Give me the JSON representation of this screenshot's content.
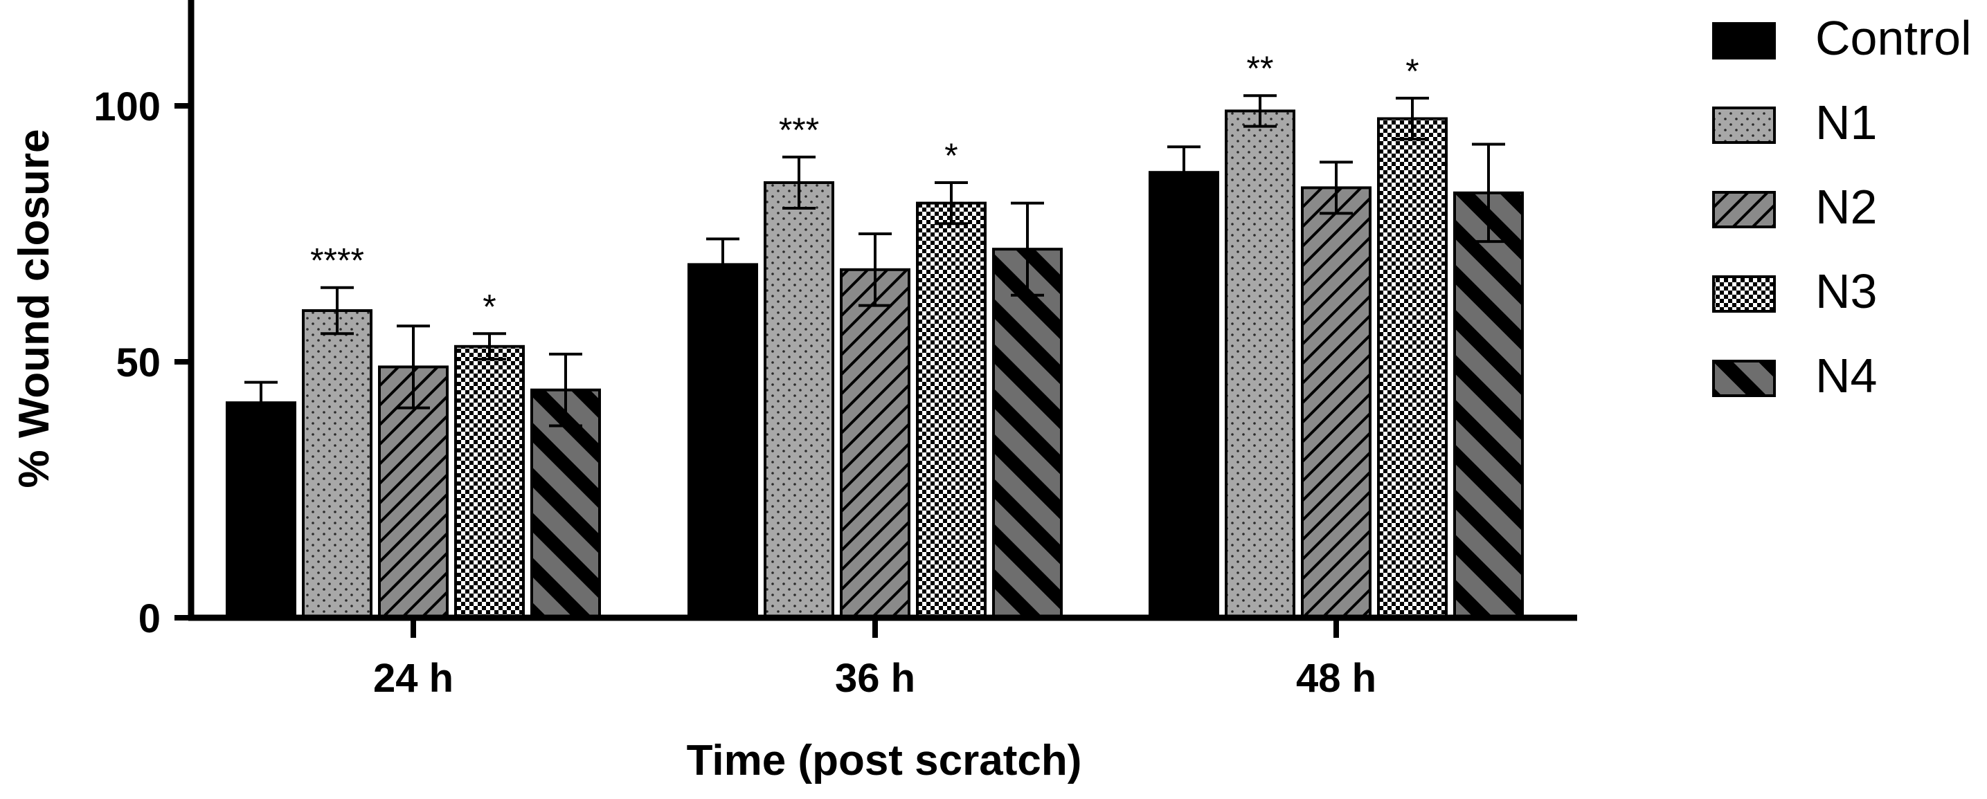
{
  "chart_data": {
    "type": "bar",
    "title": "",
    "xlabel": "Time (post scratch)",
    "ylabel": "% Wound closure",
    "ylim": [
      0,
      120
    ],
    "yticks": [
      0,
      50,
      100
    ],
    "ytick_labels": [
      "0",
      "50",
      "100"
    ],
    "categories": [
      "24 h",
      "36 h",
      "48 h"
    ],
    "legend_position": "right",
    "grid": false,
    "series": [
      {
        "name": "Control",
        "pattern": "solid",
        "color": "#000000",
        "values": [
          42,
          69,
          87
        ],
        "errors": [
          4,
          5,
          5
        ],
        "significance": [
          "",
          "",
          ""
        ]
      },
      {
        "name": "N1",
        "pattern": "dots",
        "color": "#a8a8a8",
        "values": [
          60,
          85,
          99
        ],
        "errors": [
          4.5,
          5,
          3
        ],
        "significance": [
          "****",
          "***",
          "**"
        ]
      },
      {
        "name": "N2",
        "pattern": "thin-diagonal",
        "color": "#7a7a7a",
        "values": [
          49,
          68,
          84
        ],
        "errors": [
          8,
          7,
          5
        ],
        "significance": [
          "",
          "",
          ""
        ]
      },
      {
        "name": "N3",
        "pattern": "checker",
        "color": "#7a7a7a",
        "values": [
          53,
          81,
          97.5
        ],
        "errors": [
          2.5,
          4,
          4
        ],
        "significance": [
          "*",
          "*",
          "*"
        ]
      },
      {
        "name": "N4",
        "pattern": "thick-diagonal",
        "color": "#666666",
        "values": [
          44.5,
          72,
          83
        ],
        "errors": [
          7,
          9,
          9.5
        ],
        "significance": [
          "",
          "",
          ""
        ]
      }
    ]
  }
}
